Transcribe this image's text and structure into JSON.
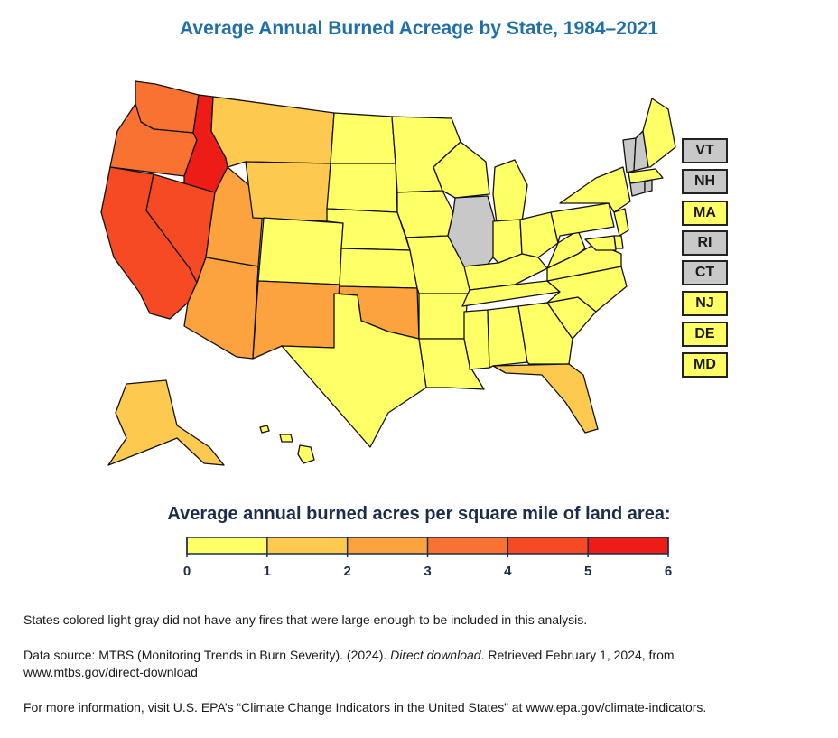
{
  "title": "Average Annual Burned Acreage by State, 1984–2021",
  "legend": {
    "title": "Average annual burned acres per square mile of land area:",
    "ticks": [
      "0",
      "1",
      "2",
      "3",
      "4",
      "5",
      "6"
    ],
    "bins": [
      {
        "from": 0,
        "to": 1,
        "color": "#ffff66"
      },
      {
        "from": 1,
        "to": 2,
        "color": "#fdc94f"
      },
      {
        "from": 2,
        "to": 3,
        "color": "#fca23e"
      },
      {
        "from": 3,
        "to": 4,
        "color": "#f97232"
      },
      {
        "from": 4,
        "to": 5,
        "color": "#f54a24"
      },
      {
        "from": 5,
        "to": 6,
        "color": "#ee1c16"
      }
    ]
  },
  "no_data_color": "#c8c8c8",
  "state_bins": {
    "WA": 3,
    "OR": 3,
    "CA": 4,
    "ID": 5,
    "NV": 4,
    "UT": 2,
    "AZ": 2,
    "MT": 1,
    "WY": 1,
    "CO": 0,
    "NM": 2,
    "AK": 1,
    "TX": 0,
    "OK": 2,
    "FL": 1,
    "KS": 0,
    "NE": 0,
    "SD": 0,
    "ND": 0,
    "MN": 0,
    "IA": 0,
    "MO": 0,
    "AR": 0,
    "LA": 0,
    "WI": 0,
    "MI": 0,
    "IL": null,
    "IN": 0,
    "OH": 0,
    "KY": 0,
    "TN": 0,
    "MS": 0,
    "AL": 0,
    "GA": 0,
    "SC": 0,
    "NC": 0,
    "VA": 0,
    "WV": 0,
    "PA": 0,
    "NY": 0,
    "ME": 0,
    "HI": 0,
    "VT": null,
    "NH": null,
    "MA": 0,
    "RI": null,
    "CT": null,
    "NJ": 0,
    "DE": 0,
    "MD": 0
  },
  "small_state_boxes": [
    {
      "label": "VT",
      "bin": null
    },
    {
      "label": "NH",
      "bin": null
    },
    {
      "label": "MA",
      "bin": 0
    },
    {
      "label": "RI",
      "bin": null
    },
    {
      "label": "CT",
      "bin": null
    },
    {
      "label": "NJ",
      "bin": 0
    },
    {
      "label": "DE",
      "bin": 0
    },
    {
      "label": "MD",
      "bin": 0
    }
  ],
  "notes": {
    "gray": "States colored light gray did not have any fires that were large enough to be included in this analysis.",
    "source_a": "Data source: MTBS (Monitoring Trends in Burn Severity). (2024). ",
    "source_b": "Direct download",
    "source_c": ". Retrieved February 1, 2024, from",
    "source_d": "www.mtbs.gov/direct-download",
    "more": "For more information, visit U.S. EPA’s “Climate Change Indicators in the United States” at www.epa.gov/climate-indicators."
  }
}
